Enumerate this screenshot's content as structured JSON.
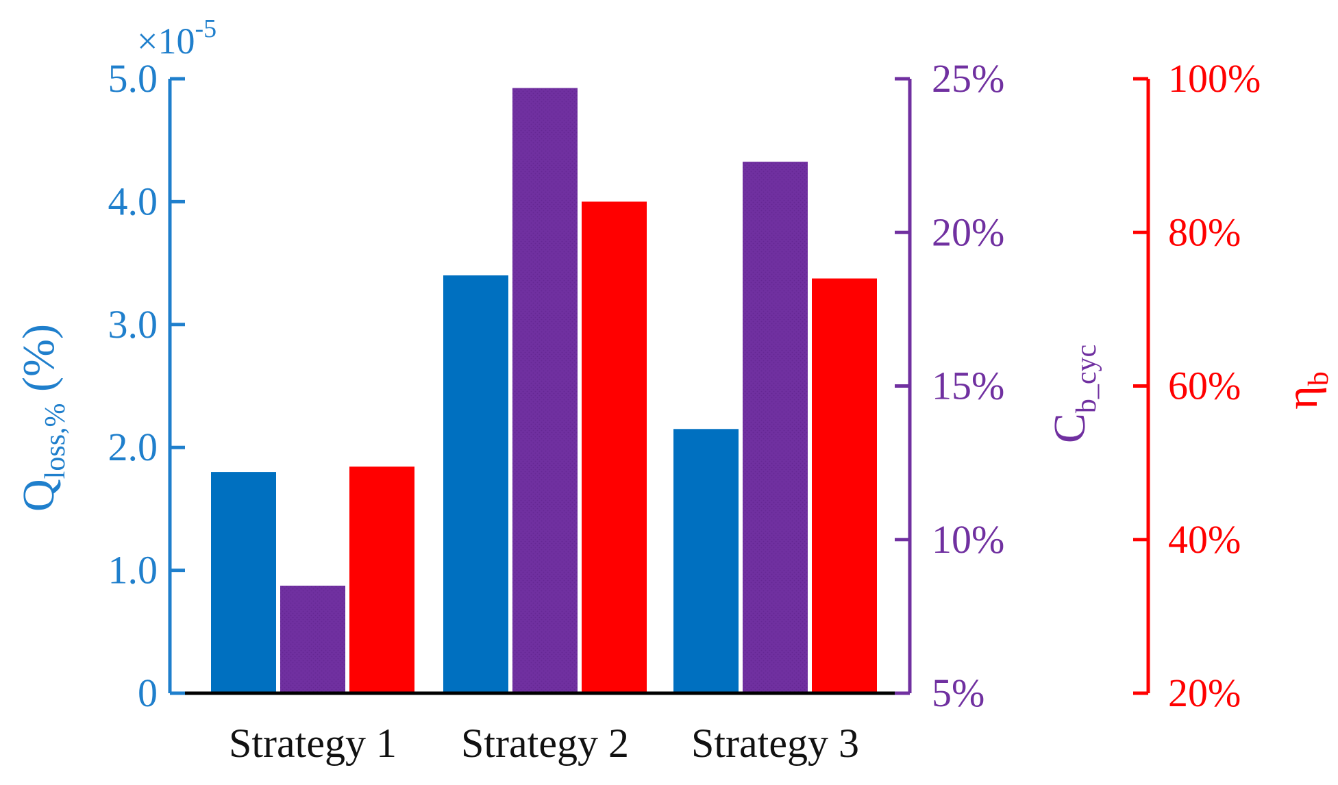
{
  "chart_data": {
    "type": "bar",
    "categories": [
      "Strategy 1",
      "Strategy 2",
      "Strategy 3"
    ],
    "series": [
      {
        "axis": "q_loss",
        "color": "#0070c0",
        "values": [
          1.8,
          3.4,
          2.15
        ]
      },
      {
        "axis": "c_cyc",
        "color": "#7030a0",
        "values": [
          8.5,
          24.7,
          22.3
        ]
      },
      {
        "axis": "eta",
        "color": "#ff0000",
        "values": [
          49.5,
          84.0,
          74.0
        ]
      }
    ],
    "axes": {
      "q_loss": {
        "label_main": "Q",
        "label_sub": "loss,%",
        "label_suffix": " (%)",
        "multiplier_base": "×10",
        "multiplier_exp": "-5",
        "ylim": [
          0,
          5
        ],
        "ticks": [
          0,
          1,
          2,
          3,
          4,
          5
        ],
        "tick_labels": [
          "0",
          "1.0",
          "2.0",
          "3.0",
          "4.0",
          "5.0"
        ],
        "color": "#1f7fcc"
      },
      "c_cyc": {
        "label_main": "C",
        "label_sub": "b_cyc",
        "ylim": [
          5,
          25
        ],
        "ticks": [
          5,
          10,
          15,
          20,
          25
        ],
        "tick_labels": [
          "5%",
          "10%",
          "15%",
          "20%",
          "25%"
        ],
        "color": "#7030a0"
      },
      "eta": {
        "label_main": "η",
        "label_sub": "b",
        "ylim": [
          20,
          100
        ],
        "ticks": [
          20,
          40,
          60,
          80,
          100
        ],
        "tick_labels": [
          "20%",
          "40%",
          "60%",
          "80%",
          "100%"
        ],
        "color": "#ff0000"
      }
    },
    "grid": false,
    "legend": "none"
  }
}
